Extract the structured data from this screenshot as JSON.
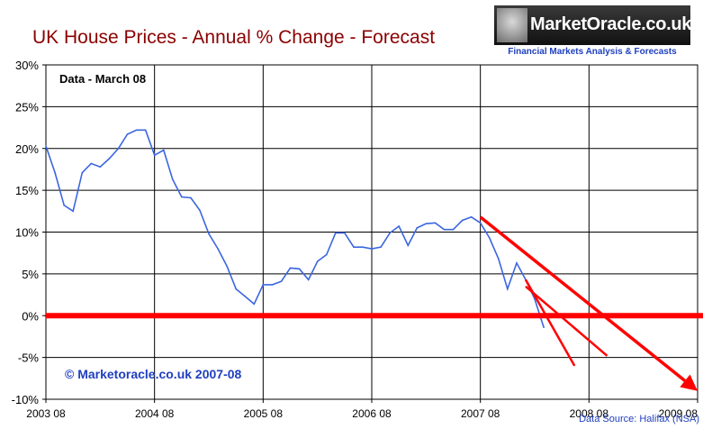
{
  "title": "UK House Prices -  Annual % Change - Forecast",
  "logo": {
    "name": "MarketOracle.co.uk",
    "tagline": "Financial Markets Analysis & Forecasts"
  },
  "source_note": "Data Source: Halifax (NSA)",
  "colors": {
    "title": "#8b0000",
    "series": "#3b66e0",
    "forecast": "#ff0000",
    "accent_text": "#1f3fbf"
  },
  "chart_data": {
    "type": "line",
    "annotations": {
      "data_label": "Data - March 08",
      "copyright": "© Marketoracle.co.uk 2007-08"
    },
    "xlim": [
      2003.583,
      2009.583
    ],
    "x_ticks": [
      2003.583,
      2004.583,
      2005.583,
      2006.583,
      2007.583,
      2008.583,
      2009.583
    ],
    "x_tick_labels": [
      "2003 08",
      "2004 08",
      "2005 08",
      "2006 08",
      "2007 08",
      "2008 08",
      "2009 08"
    ],
    "ylim": [
      -10,
      30
    ],
    "y_ticks": [
      -10,
      -5,
      0,
      5,
      10,
      15,
      20,
      25,
      30
    ],
    "y_tick_labels": [
      "-10%",
      "-5%",
      "0%",
      "5%",
      "10%",
      "15%",
      "20%",
      "25%",
      "30%"
    ],
    "grid": true,
    "series": [
      {
        "points": [
          [
            2003.583,
            20.3
          ],
          [
            2003.667,
            17.1
          ],
          [
            2003.75,
            13.2
          ],
          [
            2003.833,
            12.5
          ],
          [
            2003.917,
            17.1
          ],
          [
            2004.0,
            18.2
          ],
          [
            2004.083,
            17.8
          ],
          [
            2004.167,
            18.8
          ],
          [
            2004.25,
            20.0
          ],
          [
            2004.333,
            21.7
          ],
          [
            2004.417,
            22.2
          ],
          [
            2004.5,
            22.2
          ],
          [
            2004.583,
            19.2
          ],
          [
            2004.667,
            19.8
          ],
          [
            2004.75,
            16.3
          ],
          [
            2004.833,
            14.2
          ],
          [
            2004.917,
            14.1
          ],
          [
            2005.0,
            12.6
          ],
          [
            2005.083,
            9.8
          ],
          [
            2005.167,
            8.0
          ],
          [
            2005.25,
            5.9
          ],
          [
            2005.333,
            3.2
          ],
          [
            2005.417,
            2.3
          ],
          [
            2005.5,
            1.4
          ],
          [
            2005.583,
            3.7
          ],
          [
            2005.667,
            3.7
          ],
          [
            2005.75,
            4.1
          ],
          [
            2005.833,
            5.7
          ],
          [
            2005.917,
            5.6
          ],
          [
            2006.0,
            4.3
          ],
          [
            2006.083,
            6.5
          ],
          [
            2006.167,
            7.3
          ],
          [
            2006.25,
            9.9
          ],
          [
            2006.333,
            9.9
          ],
          [
            2006.417,
            8.2
          ],
          [
            2006.5,
            8.2
          ],
          [
            2006.583,
            8.0
          ],
          [
            2006.667,
            8.2
          ],
          [
            2006.75,
            9.9
          ],
          [
            2006.833,
            10.7
          ],
          [
            2006.917,
            8.4
          ],
          [
            2007.0,
            10.5
          ],
          [
            2007.083,
            11.0
          ],
          [
            2007.167,
            11.1
          ],
          [
            2007.25,
            10.3
          ],
          [
            2007.333,
            10.3
          ],
          [
            2007.417,
            11.4
          ],
          [
            2007.5,
            11.8
          ],
          [
            2007.583,
            11.1
          ],
          [
            2007.667,
            9.3
          ],
          [
            2007.75,
            6.8
          ],
          [
            2007.833,
            3.2
          ],
          [
            2007.917,
            6.3
          ],
          [
            2008.0,
            4.3
          ],
          [
            2008.083,
            2.0
          ],
          [
            2008.167,
            -1.4
          ]
        ]
      }
    ],
    "zero_line": 0,
    "forecast_lines": [
      {
        "from": [
          2007.583,
          11.8
        ],
        "to": [
          2009.583,
          -9.0
        ],
        "arrow": true
      },
      {
        "from": [
          2008.0,
          4.3
        ],
        "to": [
          2008.45,
          -6.0
        ],
        "arrow": false
      },
      {
        "from": [
          2008.0,
          3.5
        ],
        "to": [
          2008.75,
          -4.8
        ],
        "arrow": false
      }
    ]
  }
}
